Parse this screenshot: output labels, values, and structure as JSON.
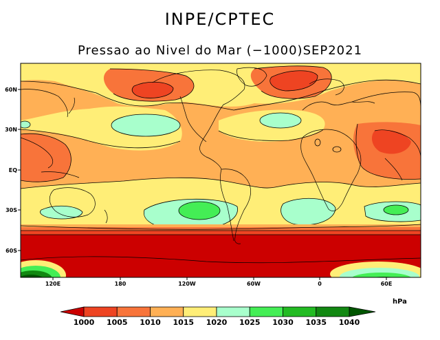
{
  "header": {
    "org": "INPE/CPTEC",
    "title": "Pressao ao Nivel do Mar (−1000)SEP2021"
  },
  "axes": {
    "lat_ticks": [
      "60N",
      "30N",
      "EQ",
      "30S",
      "60S"
    ],
    "lon_ticks": [
      "120E",
      "180",
      "120W",
      "60W",
      "0",
      "60E"
    ]
  },
  "colorbar": {
    "unit": "hPa",
    "levels": [
      "1000",
      "1005",
      "1010",
      "1015",
      "1020",
      "1025",
      "1030",
      "1035",
      "1040"
    ],
    "colors": [
      "#cc0000",
      "#ee4422",
      "#f8743a",
      "#ffb055",
      "#ffee77",
      "#a8ffcc",
      "#44ee55",
      "#22bb22",
      "#118811",
      "#005500"
    ]
  }
}
